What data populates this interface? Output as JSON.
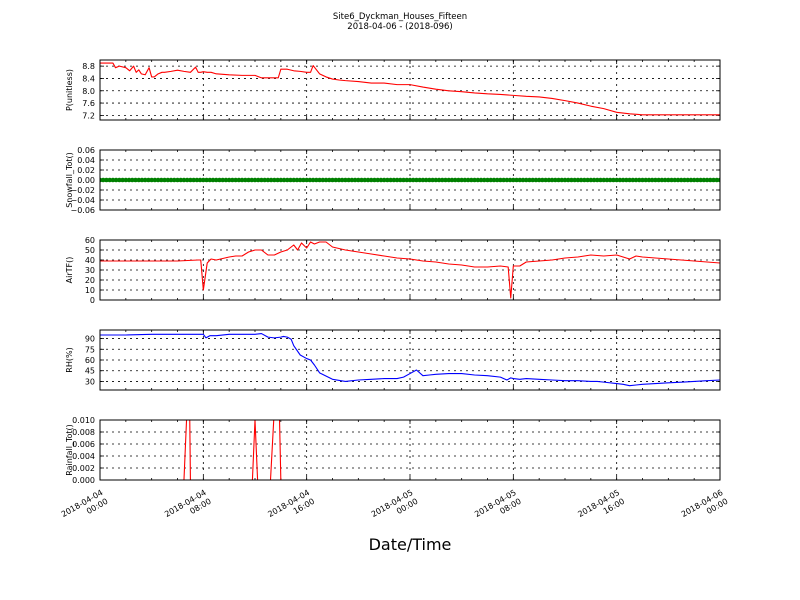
{
  "chart_data": {
    "type": "line",
    "title": "Site6_Dyckman_Houses_Fifteen",
    "subtitle": "2018-04-06 - (2018-096)",
    "xlabel": "Date/Time",
    "x_ticks": [
      {
        "hour": 0,
        "line1": "2018-04-04",
        "line2": "00:00"
      },
      {
        "hour": 8,
        "line1": "2018-04-04",
        "line2": "08:00"
      },
      {
        "hour": 16,
        "line1": "2018-04-04",
        "line2": "16:00"
      },
      {
        "hour": 24,
        "line1": "2018-04-05",
        "line2": "00:00"
      },
      {
        "hour": 32,
        "line1": "2018-04-05",
        "line2": "08:00"
      },
      {
        "hour": 40,
        "line1": "2018-04-05",
        "line2": "16:00"
      },
      {
        "hour": 48,
        "line1": "2018-04-06",
        "line2": "00:00"
      }
    ],
    "xlim_hours": [
      0,
      48
    ],
    "panels": [
      {
        "ylabel": "P(unitless)",
        "ylim": [
          7.05,
          9.0
        ],
        "yticks": [
          "8.8",
          "8.4",
          "8.0",
          "7.6",
          "7.2"
        ],
        "ytick_values": [
          8.8,
          8.4,
          8.0,
          7.6,
          7.2
        ],
        "color": "#ff0000",
        "markers": false,
        "x": [
          0,
          0.5,
          1,
          1.2,
          1.5,
          2,
          2.3,
          2.6,
          2.8,
          3,
          3.2,
          3.5,
          3.8,
          4,
          4.2,
          4.5,
          4.8,
          5,
          5.5,
          6,
          6.5,
          7,
          7.4,
          7.6,
          7.8,
          8,
          8.3,
          8.6,
          9,
          10,
          11,
          12,
          12.5,
          13,
          13.5,
          13.8,
          14,
          14.5,
          15,
          15.5,
          16,
          16.3,
          16.5,
          17,
          17.5,
          18,
          18.5,
          19,
          20,
          21,
          22,
          23,
          24,
          25,
          26,
          27,
          28,
          29,
          30,
          31,
          32,
          33,
          34,
          35,
          36,
          37,
          38,
          39,
          40,
          41,
          42,
          43,
          44,
          45,
          46,
          47,
          48
        ],
        "y": [
          8.9,
          8.9,
          8.9,
          8.75,
          8.8,
          8.75,
          8.65,
          8.8,
          8.6,
          8.68,
          8.55,
          8.52,
          8.75,
          8.45,
          8.45,
          8.55,
          8.6,
          8.6,
          8.63,
          8.67,
          8.63,
          8.6,
          8.77,
          8.6,
          8.6,
          8.62,
          8.6,
          8.6,
          8.55,
          8.52,
          8.5,
          8.5,
          8.42,
          8.42,
          8.42,
          8.42,
          8.7,
          8.7,
          8.65,
          8.63,
          8.6,
          8.6,
          8.82,
          8.55,
          8.45,
          8.38,
          8.35,
          8.33,
          8.3,
          8.25,
          8.25,
          8.2,
          8.2,
          8.12,
          8.05,
          8.0,
          7.97,
          7.93,
          7.9,
          7.88,
          7.85,
          7.82,
          7.8,
          7.75,
          7.68,
          7.6,
          7.5,
          7.42,
          7.3,
          7.25,
          7.22,
          7.22,
          7.22,
          7.22,
          7.22,
          7.22,
          7.22
        ]
      },
      {
        "ylabel": "Snowfall_Tot()",
        "ylim": [
          -0.06,
          0.06
        ],
        "yticks": [
          "0.06",
          "0.04",
          "0.02",
          "0.00",
          "−0.02",
          "−0.04",
          "−0.06"
        ],
        "ytick_values": [
          0.06,
          0.04,
          0.02,
          0.0,
          -0.02,
          -0.04,
          -0.06
        ],
        "color": "#008000",
        "markers": true,
        "constant_value": 0.0
      },
      {
        "ylabel": "AirTF()",
        "ylim": [
          0,
          60
        ],
        "yticks": [
          "60",
          "50",
          "40",
          "30",
          "20",
          "10",
          "0"
        ],
        "ytick_values": [
          60,
          50,
          40,
          30,
          20,
          10,
          0
        ],
        "color": "#ff0000",
        "markers": false,
        "x": [
          0,
          2,
          4,
          6,
          7.6,
          7.8,
          8.0,
          8.3,
          8.6,
          9,
          10,
          10.5,
          11,
          11.5,
          12,
          12.5,
          13,
          13.5,
          14,
          14.5,
          15,
          15.3,
          15.6,
          16,
          16.3,
          16.6,
          17,
          17.5,
          18,
          19,
          20,
          21,
          22,
          23,
          24,
          25,
          26,
          27,
          28,
          29,
          30,
          31,
          31.6,
          31.8,
          32.0,
          32.2,
          32.5,
          33,
          34,
          35,
          36,
          37,
          38,
          39,
          40,
          40.5,
          41,
          41.5,
          42,
          43,
          44,
          45,
          46,
          47,
          48
        ],
        "y": [
          39,
          39,
          39,
          39,
          40,
          40,
          10,
          37,
          41,
          40,
          43,
          44,
          44,
          48,
          50,
          50,
          45,
          45,
          48,
          50,
          55,
          50,
          57,
          52,
          58,
          56,
          58,
          58,
          53,
          50,
          48,
          46,
          44,
          42,
          41,
          39,
          38,
          36,
          35,
          33,
          33,
          34,
          33,
          2,
          34,
          34,
          34,
          38,
          39,
          40,
          42,
          43,
          45,
          44,
          45,
          43,
          41,
          44,
          43,
          42,
          41,
          40,
          39,
          38,
          37
        ]
      },
      {
        "ylabel": "RH(%)",
        "ylim": [
          18,
          102
        ],
        "yticks": [
          "90",
          "75",
          "60",
          "45",
          "30"
        ],
        "ytick_values": [
          90,
          75,
          60,
          45,
          30
        ],
        "color": "#0000ff",
        "markers": false,
        "x": [
          0,
          2,
          4,
          6,
          7.8,
          8.0,
          8.2,
          8.5,
          9,
          10,
          11,
          12,
          12.5,
          13,
          13.5,
          14,
          14.2,
          14.5,
          14.8,
          15,
          15.5,
          16,
          16.3,
          16.6,
          17,
          18,
          19,
          20,
          21,
          22,
          23,
          23.5,
          24,
          24.5,
          25,
          25.5,
          26,
          27,
          28,
          29,
          30,
          31,
          31.5,
          31.8,
          32.0,
          32.5,
          33,
          34,
          35,
          36,
          37,
          38,
          38.5,
          39,
          40,
          40.5,
          41,
          41.5,
          42,
          43,
          44,
          45,
          46,
          47,
          48
        ],
        "y": [
          95,
          95,
          96,
          96,
          96,
          96,
          91,
          94,
          94,
          96,
          96,
          96,
          97,
          92,
          91,
          92,
          93,
          92,
          89,
          80,
          67,
          62,
          60,
          53,
          42,
          33,
          30,
          32,
          33,
          34,
          34,
          36,
          41,
          46,
          38,
          39,
          40,
          41,
          41,
          39,
          38,
          36,
          32,
          35,
          34,
          33,
          34,
          33,
          32,
          31,
          31,
          30,
          30,
          29,
          27,
          26,
          24,
          25,
          26,
          27,
          28,
          29,
          30,
          31,
          32
        ]
      },
      {
        "ylabel": "Rainfall_Tot()",
        "ylim": [
          0,
          0.01
        ],
        "yticks": [
          "0.010",
          "0.008",
          "0.006",
          "0.004",
          "0.002",
          "0.000"
        ],
        "ytick_values": [
          0.01,
          0.008,
          0.006,
          0.004,
          0.002,
          0.0
        ],
        "color": "#ff0000",
        "markers": false,
        "x": [
          0,
          6.5,
          6.7,
          6.95,
          7.0,
          11.8,
          12.0,
          12.2,
          13.2,
          13.45,
          13.6,
          13.9,
          14.0,
          48
        ],
        "y": [
          0,
          0,
          0.01,
          0.01,
          0,
          0,
          0.01,
          0,
          0,
          0.01,
          0.01,
          0.01,
          0,
          0
        ]
      }
    ]
  }
}
